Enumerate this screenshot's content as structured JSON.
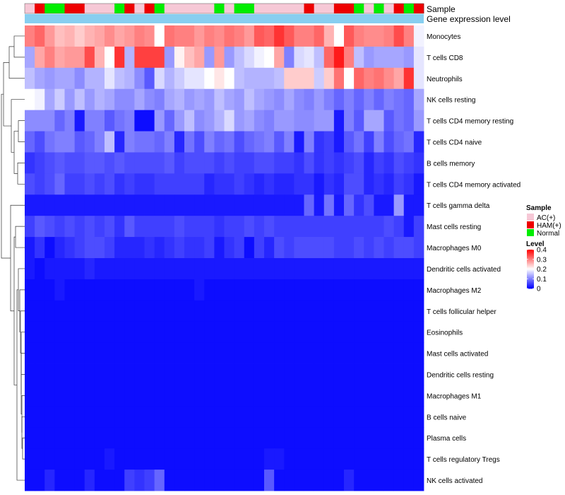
{
  "chart_data": {
    "type": "heatmap",
    "annotation_tracks": [
      "Sample",
      "Gene expression level"
    ],
    "sample_groups": [
      "AC(+)",
      "HAM(+)",
      "Normal",
      "Normal",
      "HAM(+)",
      "HAM(+)",
      "AC(+)",
      "AC(+)",
      "AC(+)",
      "Normal",
      "HAM(+)",
      "AC(+)",
      "HAM(+)",
      "Normal",
      "AC(+)",
      "AC(+)",
      "AC(+)",
      "AC(+)",
      "AC(+)",
      "Normal",
      "AC(+)",
      "Normal",
      "Normal",
      "AC(+)",
      "AC(+)",
      "AC(+)",
      "AC(+)",
      "AC(+)",
      "HAM(+)",
      "AC(+)",
      "AC(+)",
      "HAM(+)",
      "HAM(+)",
      "Normal",
      "AC(+)",
      "Normal",
      "AC(+)",
      "HAM(+)",
      "Normal",
      "HAM(+)"
    ],
    "rows": [
      "Monocytes",
      "T cells CD8",
      "Neutrophils",
      "NK cells resting",
      "T cells CD4 memory resting",
      "T cells CD4 naive",
      "B cells memory",
      "T cells CD4 memory activated",
      "T cells gamma delta",
      "Mast cells resting",
      "Macrophages M0",
      "Dendritic cells activated",
      "Macrophages M2",
      "T cells follicular helper",
      "Eosinophils",
      "Mast cells activated",
      "Dendritic cells resting",
      "Macrophages M1",
      "B cells naive",
      "Plasma cells",
      "T cells regulatory  Tregs",
      "NK cells activated"
    ],
    "values": [
      [
        0.3,
        0.32,
        0.28,
        0.25,
        0.26,
        0.24,
        0.26,
        0.27,
        0.29,
        0.27,
        0.28,
        0.3,
        0.29,
        0.2,
        0.31,
        0.3,
        0.3,
        0.28,
        0.3,
        0.29,
        0.31,
        0.3,
        0.28,
        0.33,
        0.32,
        0.36,
        0.33,
        0.3,
        0.3,
        0.32,
        0.26,
        0.2,
        0.33,
        0.3,
        0.29,
        0.29,
        0.3,
        0.34,
        0.3,
        0.19
      ],
      [
        0.13,
        0.27,
        0.3,
        0.27,
        0.28,
        0.28,
        0.34,
        0.26,
        0.2,
        0.36,
        0.14,
        0.35,
        0.35,
        0.35,
        0.12,
        0.21,
        0.25,
        0.27,
        0.12,
        0.28,
        0.12,
        0.15,
        0.17,
        0.19,
        0.2,
        0.27,
        0.1,
        0.17,
        0.18,
        0.15,
        0.32,
        0.38,
        0.3,
        0.15,
        0.12,
        0.13,
        0.13,
        0.13,
        0.12,
        0.18
      ],
      [
        0.15,
        0.13,
        0.12,
        0.13,
        0.13,
        0.11,
        0.14,
        0.14,
        0.18,
        0.15,
        0.14,
        0.11,
        0.07,
        0.17,
        0.14,
        0.16,
        0.18,
        0.18,
        0.2,
        0.22,
        0.2,
        0.15,
        0.14,
        0.14,
        0.14,
        0.15,
        0.24,
        0.24,
        0.24,
        0.16,
        0.24,
        0.31,
        0.2,
        0.32,
        0.3,
        0.31,
        0.29,
        0.27,
        0.36,
        0.18
      ],
      [
        0.2,
        0.19,
        0.13,
        0.16,
        0.12,
        0.15,
        0.12,
        0.14,
        0.13,
        0.11,
        0.11,
        0.13,
        0.11,
        0.1,
        0.13,
        0.14,
        0.12,
        0.13,
        0.12,
        0.15,
        0.13,
        0.12,
        0.15,
        0.13,
        0.12,
        0.11,
        0.13,
        0.11,
        0.1,
        0.12,
        0.1,
        0.08,
        0.1,
        0.08,
        0.1,
        0.08,
        0.1,
        0.09,
        0.08,
        0.13
      ],
      [
        0.11,
        0.11,
        0.11,
        0.08,
        0.1,
        0.02,
        0.1,
        0.1,
        0.07,
        0.09,
        0.1,
        0.01,
        0.01,
        0.12,
        0.08,
        0.12,
        0.15,
        0.11,
        0.12,
        0.14,
        0.17,
        0.12,
        0.13,
        0.11,
        0.1,
        0.12,
        0.12,
        0.11,
        0.11,
        0.12,
        0.12,
        0.02,
        0.1,
        0.07,
        0.13,
        0.13,
        0.07,
        0.09,
        0.08,
        0.12
      ],
      [
        0.08,
        0.06,
        0.09,
        0.1,
        0.1,
        0.07,
        0.08,
        0.1,
        0.15,
        0.03,
        0.1,
        0.09,
        0.09,
        0.08,
        0.1,
        0.03,
        0.09,
        0.06,
        0.1,
        0.08,
        0.09,
        0.06,
        0.08,
        0.09,
        0.1,
        0.07,
        0.1,
        0.02,
        0.1,
        0.04,
        0.05,
        0.02,
        0.07,
        0.09,
        0.05,
        0.1,
        0.06,
        0.08,
        0.09,
        0.03
      ],
      [
        0.04,
        0.05,
        0.06,
        0.07,
        0.06,
        0.06,
        0.07,
        0.07,
        0.06,
        0.07,
        0.06,
        0.06,
        0.06,
        0.06,
        0.07,
        0.05,
        0.06,
        0.06,
        0.06,
        0.05,
        0.06,
        0.05,
        0.05,
        0.06,
        0.06,
        0.05,
        0.05,
        0.04,
        0.06,
        0.04,
        0.05,
        0.04,
        0.05,
        0.06,
        0.03,
        0.05,
        0.04,
        0.06,
        0.05,
        0.04
      ],
      [
        0.06,
        0.05,
        0.06,
        0.08,
        0.05,
        0.05,
        0.06,
        0.05,
        0.06,
        0.04,
        0.05,
        0.04,
        0.04,
        0.05,
        0.05,
        0.05,
        0.05,
        0.05,
        0.03,
        0.04,
        0.04,
        0.05,
        0.04,
        0.03,
        0.04,
        0.03,
        0.03,
        0.04,
        0.04,
        0.02,
        0.04,
        0.03,
        0.06,
        0.06,
        0.03,
        0.04,
        0.03,
        0.05,
        0.04,
        0.02
      ],
      [
        0.02,
        0.02,
        0.02,
        0.02,
        0.02,
        0.02,
        0.02,
        0.02,
        0.02,
        0.02,
        0.02,
        0.02,
        0.02,
        0.02,
        0.02,
        0.02,
        0.02,
        0.02,
        0.02,
        0.02,
        0.02,
        0.02,
        0.02,
        0.02,
        0.02,
        0.02,
        0.02,
        0.02,
        0.08,
        0.02,
        0.09,
        0.02,
        0.08,
        0.04,
        0.06,
        0.02,
        0.02,
        0.12,
        0.02,
        0.02
      ],
      [
        0.05,
        0.07,
        0.06,
        0.05,
        0.06,
        0.05,
        0.06,
        0.05,
        0.06,
        0.04,
        0.07,
        0.05,
        0.05,
        0.05,
        0.05,
        0.06,
        0.05,
        0.05,
        0.05,
        0.04,
        0.05,
        0.05,
        0.06,
        0.05,
        0.06,
        0.05,
        0.05,
        0.05,
        0.05,
        0.05,
        0.05,
        0.05,
        0.05,
        0.05,
        0.05,
        0.05,
        0.06,
        0.05,
        0.02,
        0.05
      ],
      [
        0.02,
        0.04,
        0.01,
        0.03,
        0.04,
        0.05,
        0.06,
        0.06,
        0.05,
        0.03,
        0.03,
        0.03,
        0.04,
        0.03,
        0.04,
        0.05,
        0.04,
        0.04,
        0.05,
        0.02,
        0.04,
        0.05,
        0.01,
        0.05,
        0.03,
        0.06,
        0.05,
        0.06,
        0.06,
        0.06,
        0.06,
        0.05,
        0.05,
        0.06,
        0.05,
        0.06,
        0.05,
        0.06,
        0.06,
        0.05
      ],
      [
        0.02,
        0.01,
        0.02,
        0.02,
        0.02,
        0.02,
        0.03,
        0.02,
        0.02,
        0.02,
        0.02,
        0.02,
        0.02,
        0.02,
        0.02,
        0.02,
        0.02,
        0.02,
        0.02,
        0.02,
        0.02,
        0.02,
        0.02,
        0.02,
        0.02,
        0.02,
        0.02,
        0.02,
        0.02,
        0.02,
        0.02,
        0.02,
        0.02,
        0.02,
        0.02,
        0.02,
        0.02,
        0.02,
        0.02,
        0.02
      ],
      [
        0.01,
        0.01,
        0.01,
        0.02,
        0.01,
        0.01,
        0.01,
        0.01,
        0.01,
        0.01,
        0.01,
        0.01,
        0.01,
        0.01,
        0.01,
        0.01,
        0.01,
        0.02,
        0.01,
        0.01,
        0.01,
        0.01,
        0.01,
        0.01,
        0.01,
        0.01,
        0.01,
        0.01,
        0.01,
        0.01,
        0.01,
        0.01,
        0.01,
        0.01,
        0.01,
        0.01,
        0.01,
        0.01,
        0.01,
        0.01
      ],
      [
        0.01,
        0.01,
        0.01,
        0.01,
        0.01,
        0.01,
        0.01,
        0.01,
        0.01,
        0.01,
        0.01,
        0.01,
        0.01,
        0.01,
        0.01,
        0.01,
        0.01,
        0.01,
        0.01,
        0.01,
        0.01,
        0.01,
        0.01,
        0.01,
        0.01,
        0.01,
        0.01,
        0.01,
        0.01,
        0.01,
        0.01,
        0.01,
        0.01,
        0.01,
        0.01,
        0.01,
        0.01,
        0.01,
        0.01,
        0.01
      ],
      [
        0.01,
        0.01,
        0.01,
        0.01,
        0.01,
        0.01,
        0.01,
        0.01,
        0.01,
        0.01,
        0.01,
        0.01,
        0.01,
        0.01,
        0.01,
        0.01,
        0.01,
        0.01,
        0.01,
        0.01,
        0.01,
        0.01,
        0.01,
        0.01,
        0.01,
        0.01,
        0.01,
        0.01,
        0.01,
        0.01,
        0.01,
        0.01,
        0.01,
        0.01,
        0.01,
        0.01,
        0.01,
        0.01,
        0.01,
        0.01
      ],
      [
        0.01,
        0.01,
        0.01,
        0.01,
        0.01,
        0.01,
        0.01,
        0.01,
        0.01,
        0.01,
        0.01,
        0.01,
        0.01,
        0.01,
        0.01,
        0.01,
        0.01,
        0.01,
        0.01,
        0.01,
        0.01,
        0.01,
        0.01,
        0.01,
        0.01,
        0.01,
        0.01,
        0.01,
        0.01,
        0.01,
        0.01,
        0.01,
        0.01,
        0.01,
        0.01,
        0.01,
        0.01,
        0.01,
        0.01,
        0.01
      ],
      [
        0.01,
        0.01,
        0.01,
        0.01,
        0.01,
        0.01,
        0.01,
        0.01,
        0.01,
        0.01,
        0.01,
        0.01,
        0.01,
        0.01,
        0.01,
        0.01,
        0.01,
        0.01,
        0.01,
        0.01,
        0.01,
        0.01,
        0.01,
        0.01,
        0.01,
        0.01,
        0.01,
        0.01,
        0.01,
        0.01,
        0.01,
        0.01,
        0.01,
        0.01,
        0.01,
        0.01,
        0.01,
        0.01,
        0.01,
        0.01
      ],
      [
        0.01,
        0.01,
        0.01,
        0.01,
        0.01,
        0.01,
        0.01,
        0.01,
        0.01,
        0.01,
        0.01,
        0.01,
        0.01,
        0.01,
        0.01,
        0.01,
        0.01,
        0.01,
        0.01,
        0.01,
        0.01,
        0.01,
        0.01,
        0.01,
        0.01,
        0.01,
        0.01,
        0.01,
        0.01,
        0.01,
        0.01,
        0.01,
        0.01,
        0.01,
        0.01,
        0.01,
        0.01,
        0.01,
        0.01,
        0.01
      ],
      [
        0.01,
        0.01,
        0.01,
        0.01,
        0.01,
        0.01,
        0.01,
        0.01,
        0.01,
        0.01,
        0.01,
        0.01,
        0.01,
        0.01,
        0.01,
        0.01,
        0.01,
        0.01,
        0.01,
        0.01,
        0.01,
        0.01,
        0.01,
        0.01,
        0.01,
        0.01,
        0.01,
        0.01,
        0.01,
        0.01,
        0.01,
        0.01,
        0.01,
        0.01,
        0.01,
        0.01,
        0.01,
        0.01,
        0.01,
        0.01
      ],
      [
        0.01,
        0.01,
        0.01,
        0.01,
        0.01,
        0.01,
        0.01,
        0.01,
        0.01,
        0.01,
        0.01,
        0.01,
        0.01,
        0.01,
        0.01,
        0.01,
        0.01,
        0.01,
        0.01,
        0.01,
        0.01,
        0.01,
        0.01,
        0.01,
        0.01,
        0.01,
        0.01,
        0.01,
        0.01,
        0.01,
        0.01,
        0.01,
        0.01,
        0.01,
        0.01,
        0.01,
        0.01,
        0.01,
        0.01,
        0.01
      ],
      [
        0.01,
        0.01,
        0.01,
        0.01,
        0.01,
        0.01,
        0.01,
        0.01,
        0.02,
        0.01,
        0.01,
        0.01,
        0.01,
        0.01,
        0.01,
        0.01,
        0.01,
        0.01,
        0.01,
        0.01,
        0.01,
        0.01,
        0.01,
        0.01,
        0.02,
        0.02,
        0.01,
        0.01,
        0.01,
        0.01,
        0.01,
        0.01,
        0.01,
        0.01,
        0.01,
        0.01,
        0.01,
        0.01,
        0.01,
        0.01
      ],
      [
        0.01,
        0.01,
        0.03,
        0.01,
        0.01,
        0.01,
        0.03,
        0.01,
        0.01,
        0.01,
        0.05,
        0.04,
        0.05,
        0.08,
        0.01,
        0.01,
        0.01,
        0.01,
        0.01,
        0.01,
        0.01,
        0.01,
        0.01,
        0.01,
        0.07,
        0.01,
        0.01,
        0.01,
        0.01,
        0.01,
        0.01,
        0.01,
        0.03,
        0.01,
        0.01,
        0.01,
        0.01,
        0.01,
        0.01,
        0.01
      ]
    ],
    "legend_sample_title": "Sample",
    "legend_sample": [
      {
        "label": "AC(+)",
        "color": "#f6c8d6"
      },
      {
        "label": "HAM(+)",
        "color": "#ee0000"
      },
      {
        "label": "Normal",
        "color": "#00ee00"
      }
    ],
    "legend_level_title": "Level",
    "level_ticks": [
      0.4,
      0.3,
      0.2,
      0.1,
      0
    ],
    "level_range": [
      0,
      0.4
    ],
    "colormap": {
      "low": "#0000ff",
      "mid": "#ffffff",
      "high": "#ff0000",
      "mid_value": 0.2
    },
    "expression_color": "#87cef0"
  }
}
